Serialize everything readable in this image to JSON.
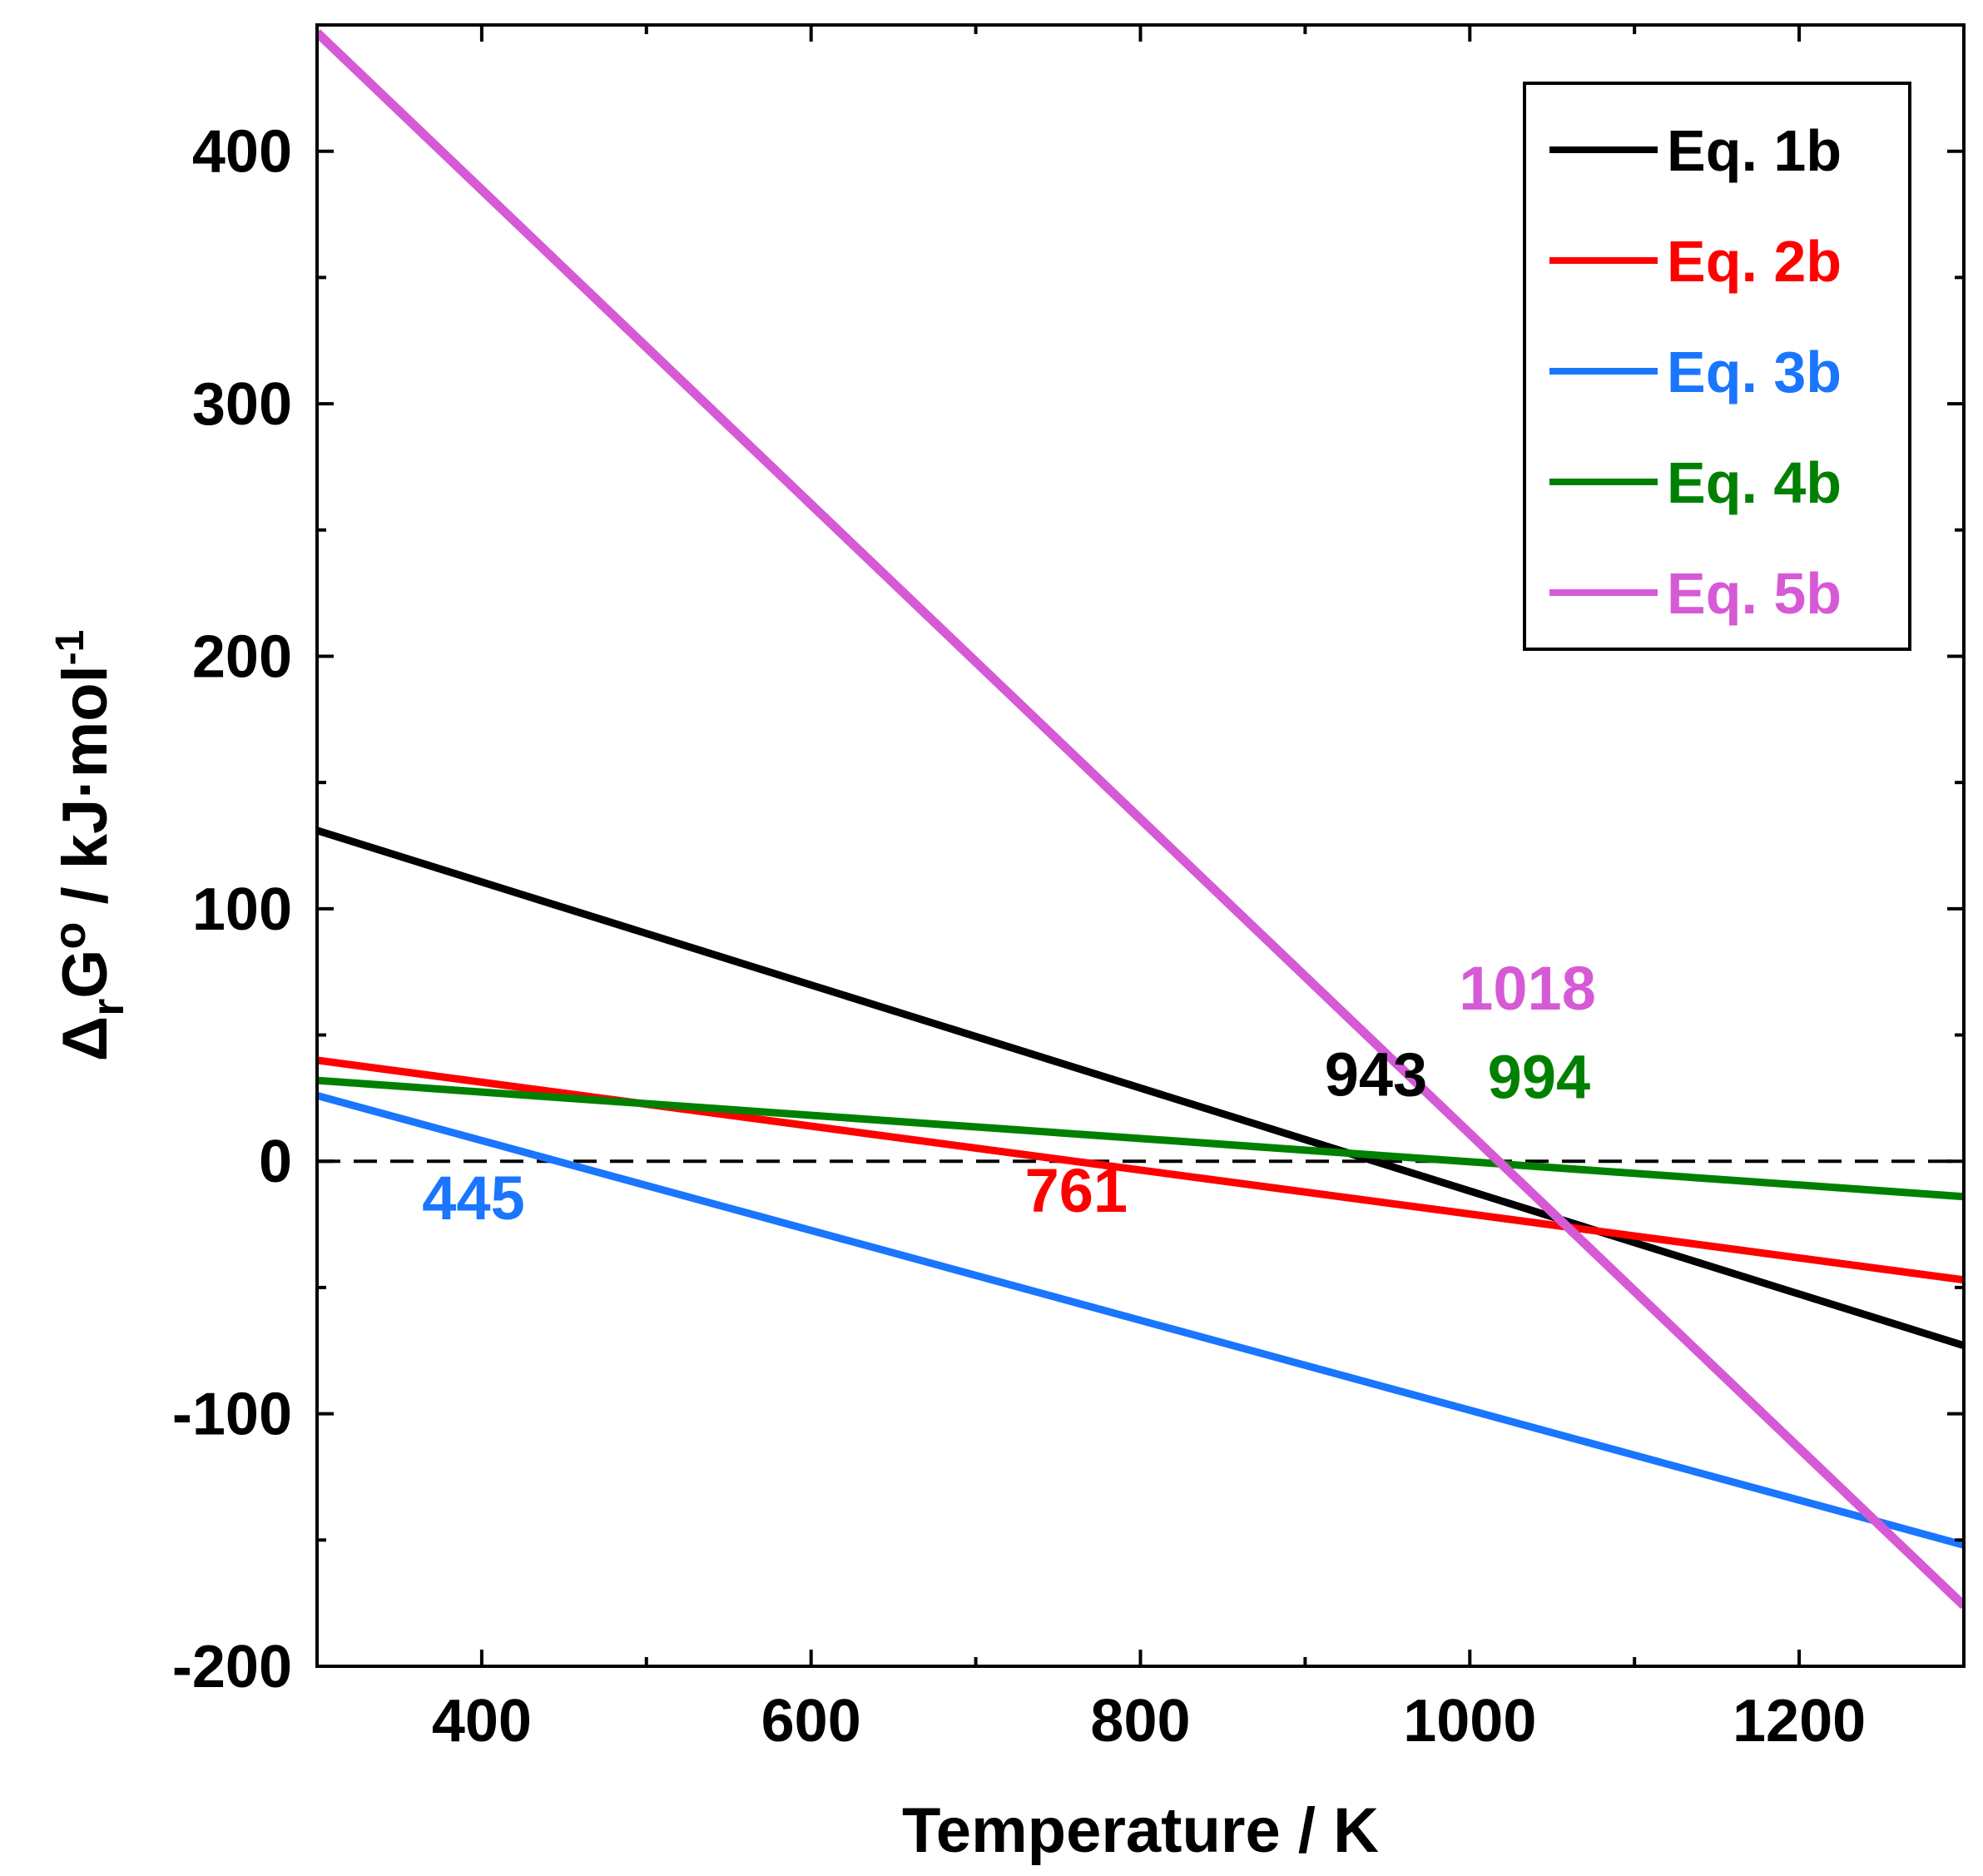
{
  "chart_data": {
    "type": "line",
    "xlabel": "Temperature / K",
    "ylabel": {
      "symbol": "Δ",
      "sub": "r",
      "main": "G",
      "sup": "o",
      "rest": " / kJ·mol",
      "unit_sup": "-1"
    },
    "xlim": [
      300,
      1300
    ],
    "ylim": [
      -200,
      450
    ],
    "xticks": [
      400,
      600,
      800,
      1000,
      1200
    ],
    "xtick_labels": [
      "400",
      "600",
      "800",
      "1000",
      "1200"
    ],
    "xminor": [
      500,
      700,
      900,
      1100
    ],
    "yticks": [
      -200,
      -100,
      0,
      100,
      200,
      300,
      400
    ],
    "ytick_labels": [
      "-200",
      "-100",
      "0",
      "100",
      "200",
      "300",
      "400"
    ],
    "yminor": [
      -150,
      -50,
      50,
      150,
      250,
      350
    ],
    "grid": false,
    "legend_position": "top-right",
    "reference_line": {
      "y": 0,
      "style": "dashed",
      "color": "#000000"
    },
    "series": [
      {
        "name": "Eq. 1b",
        "color": "#000000",
        "x": [
          300,
          1300
        ],
        "y": [
          131,
          -73
        ]
      },
      {
        "name": "Eq. 2b",
        "color": "#ff0000",
        "x": [
          300,
          1300
        ],
        "y": [
          40,
          -47
        ]
      },
      {
        "name": "Eq. 3b",
        "color": "#1a75ff",
        "x": [
          300,
          1300
        ],
        "y": [
          26,
          -152
        ]
      },
      {
        "name": "Eq. 4b",
        "color": "#008000",
        "x": [
          300,
          1300
        ],
        "y": [
          32,
          -14
        ]
      },
      {
        "name": "Eq. 5b",
        "color": "#d65ad6",
        "x": [
          300,
          1300
        ],
        "y": [
          447,
          -176
        ]
      }
    ],
    "annotations": [
      {
        "text": "943",
        "color": "#000000",
        "x": 943,
        "y": 26
      },
      {
        "text": "761",
        "color": "#ff0000",
        "x": 761,
        "y": -20
      },
      {
        "text": "445",
        "color": "#1a75ff",
        "x": 395,
        "y": -23
      },
      {
        "text": "994",
        "color": "#008000",
        "x": 1042,
        "y": 25
      },
      {
        "text": "1018",
        "color": "#d65ad6",
        "x": 1035,
        "y": 60
      }
    ]
  }
}
